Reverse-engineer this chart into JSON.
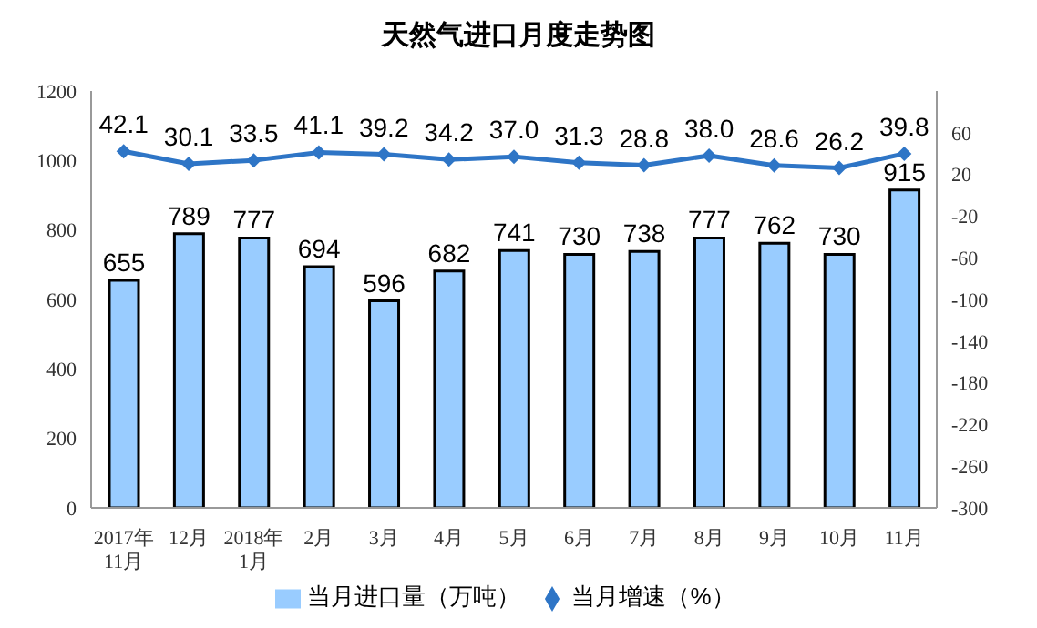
{
  "chart_data": {
    "type": "bar",
    "title": "天然气进口月度走势图",
    "categories": [
      "2017年\n11月",
      "12月",
      "2018年\n1月",
      "2月",
      "3月",
      "4月",
      "5月",
      "6月",
      "7月",
      "8月",
      "9月",
      "10月",
      "11月"
    ],
    "series": [
      {
        "name": "当月进口量（万吨）",
        "color": "#99ccff",
        "values": [
          655,
          789,
          777,
          694,
          596,
          682,
          741,
          730,
          738,
          777,
          762,
          730,
          915
        ],
        "value_labels": [
          "655",
          "789",
          "777",
          "694",
          "596",
          "682",
          "741",
          "730",
          "738",
          "777",
          "762",
          "730",
          "915"
        ]
      },
      {
        "name": "当月增速（%）",
        "type": "line",
        "axis": "y2",
        "color": "#2e75c6",
        "marker": "diamond",
        "values": [
          42.1,
          30.1,
          33.5,
          41.1,
          39.2,
          34.2,
          37.0,
          31.3,
          28.8,
          38.0,
          28.6,
          26.2,
          39.8
        ],
        "value_labels": [
          "42.1",
          "30.1",
          "33.5",
          "41.1",
          "39.2",
          "34.2",
          "37.0",
          "31.3",
          "28.8",
          "38.0",
          "28.6",
          "26.2",
          "39.8"
        ]
      }
    ],
    "ylim": [
      0,
      1200
    ],
    "yticks": [
      0,
      200,
      400,
      600,
      800,
      1000,
      1200
    ],
    "y2lim": [
      -300,
      100
    ],
    "y2ticks": [
      -300,
      -260,
      -220,
      -180,
      -140,
      -100,
      -60,
      -20,
      20,
      60
    ],
    "legend": "bottom",
    "grid": false
  }
}
